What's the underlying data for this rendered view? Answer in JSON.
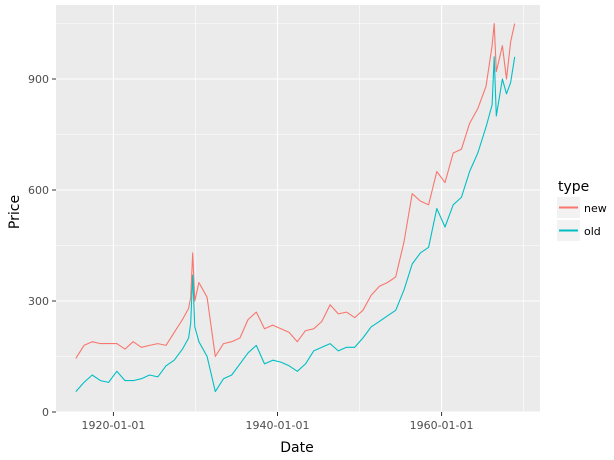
{
  "chart_data": {
    "type": "line",
    "title": "",
    "xlabel": "Date",
    "ylabel": "Price",
    "xlim": [
      "1913-01-01",
      "1971-12-31"
    ],
    "ylim": [
      0,
      1100
    ],
    "x_ticks": [
      "1920-01-01",
      "1940-01-01",
      "1960-01-01"
    ],
    "y_ticks": [
      0,
      300,
      600,
      900
    ],
    "grid": true,
    "legend": {
      "title": "type",
      "position": "right"
    },
    "x": [
      "1915-06-01",
      "1916-06-01",
      "1917-06-01",
      "1918-06-01",
      "1919-06-01",
      "1920-06-01",
      "1921-06-01",
      "1922-06-01",
      "1923-06-01",
      "1924-06-01",
      "1925-06-01",
      "1926-06-01",
      "1927-06-01",
      "1928-06-01",
      "1929-03-01",
      "1929-06-01",
      "1929-09-01",
      "1929-12-01",
      "1930-06-01",
      "1931-06-01",
      "1932-06-01",
      "1933-06-01",
      "1934-06-01",
      "1935-06-01",
      "1936-06-01",
      "1937-06-01",
      "1938-06-01",
      "1939-06-01",
      "1940-06-01",
      "1941-06-01",
      "1942-06-01",
      "1943-06-01",
      "1944-06-01",
      "1945-06-01",
      "1946-06-01",
      "1947-06-01",
      "1948-06-01",
      "1949-06-01",
      "1950-06-01",
      "1951-06-01",
      "1952-06-01",
      "1953-06-01",
      "1954-06-01",
      "1955-06-01",
      "1956-06-01",
      "1957-06-01",
      "1958-06-01",
      "1959-06-01",
      "1960-06-01",
      "1961-06-01",
      "1962-06-01",
      "1963-06-01",
      "1964-06-01",
      "1965-06-01",
      "1966-03-01",
      "1966-06-01",
      "1966-09-01",
      "1967-06-01",
      "1967-12-01",
      "1968-06-01",
      "1968-12-01"
    ],
    "series": [
      {
        "name": "new",
        "color": "#F8766D",
        "values": [
          145,
          180,
          190,
          185,
          185,
          185,
          170,
          190,
          175,
          180,
          185,
          180,
          215,
          250,
          280,
          310,
          430,
          300,
          350,
          310,
          150,
          185,
          190,
          200,
          250,
          270,
          225,
          235,
          225,
          215,
          190,
          220,
          225,
          245,
          290,
          265,
          270,
          255,
          275,
          315,
          340,
          350,
          365,
          460,
          590,
          570,
          560,
          650,
          620,
          700,
          710,
          780,
          820,
          880,
          990,
          1050,
          920,
          990,
          900,
          1000,
          1050
        ]
      },
      {
        "name": "old",
        "color": "#00BFC4",
        "values": [
          55,
          80,
          100,
          85,
          80,
          110,
          85,
          85,
          90,
          100,
          95,
          125,
          140,
          170,
          200,
          240,
          370,
          230,
          190,
          150,
          55,
          90,
          100,
          130,
          160,
          180,
          130,
          140,
          135,
          125,
          110,
          130,
          165,
          175,
          185,
          165,
          175,
          175,
          200,
          230,
          245,
          260,
          275,
          330,
          400,
          430,
          445,
          550,
          500,
          560,
          580,
          650,
          700,
          770,
          830,
          960,
          800,
          900,
          860,
          890,
          960
        ]
      }
    ]
  }
}
